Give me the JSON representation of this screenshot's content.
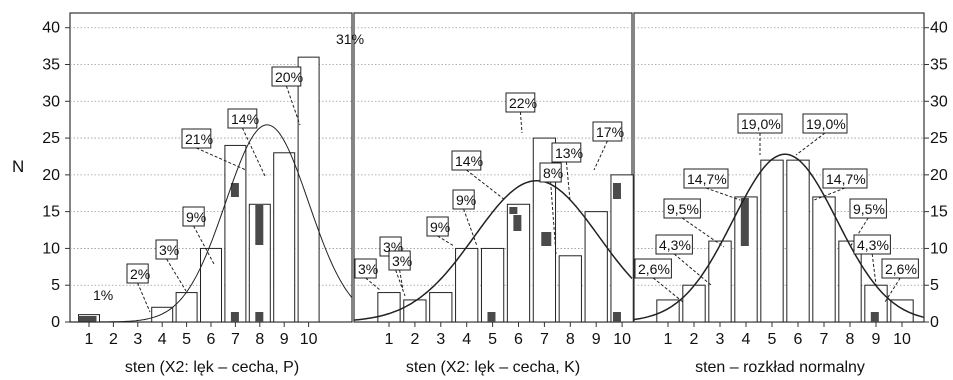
{
  "ylabel": "N",
  "y_ticks": [
    "0",
    "5",
    "10",
    "15",
    "20",
    "25",
    "30",
    "35",
    "40"
  ],
  "chart_data": [
    {
      "type": "bar",
      "xlabel": "sten (X2: lęk – cecha, P)",
      "categories": [
        "1",
        "2",
        "3",
        "4",
        "5",
        "6",
        "7",
        "8",
        "9",
        "10"
      ],
      "values": [
        1,
        0,
        0,
        2,
        4,
        10,
        24,
        16,
        23,
        36
      ],
      "labels": [
        "1%",
        "",
        "",
        "2%",
        "3%",
        "9%",
        "21%",
        "14%",
        "20%",
        "31%"
      ],
      "ylim": [
        0,
        42
      ],
      "curve": {
        "type": "normal",
        "mean": 8.3,
        "sd": 1.7,
        "peak": 26.8
      }
    },
    {
      "type": "bar",
      "xlabel": "sten (X2: lęk – cecha, K)",
      "categories": [
        "1",
        "2",
        "3",
        "4",
        "5",
        "6",
        "7",
        "8",
        "9",
        "10"
      ],
      "values": [
        4,
        3,
        4,
        10,
        10,
        16,
        25,
        9,
        15,
        20
      ],
      "labels": [
        "3%",
        "3%",
        "3%",
        "9%",
        "9%",
        "14%",
        "22%",
        "8%",
        "13%",
        "17%"
      ],
      "ylim": [
        0,
        42
      ],
      "curve": {
        "type": "normal",
        "mean": 6.7,
        "sd": 2.4,
        "peak": 19.2
      }
    },
    {
      "type": "bar",
      "xlabel": "sten – rozkład normalny",
      "categories": [
        "1",
        "2",
        "3",
        "4",
        "5",
        "6",
        "7",
        "8",
        "9",
        "10"
      ],
      "values": [
        3,
        5,
        11,
        17,
        22,
        22,
        17,
        11,
        5,
        3
      ],
      "labels": [
        "2,6%",
        "4,3%",
        "9,5%",
        "14,7%",
        "19,0%",
        "19,0%",
        "14,7%",
        "9,5%",
        "4,3%",
        "2,6%"
      ],
      "ylim": [
        0,
        42
      ],
      "curve": {
        "type": "normal",
        "mean": 5.5,
        "sd": 2.0,
        "peak": 22.8
      }
    }
  ]
}
